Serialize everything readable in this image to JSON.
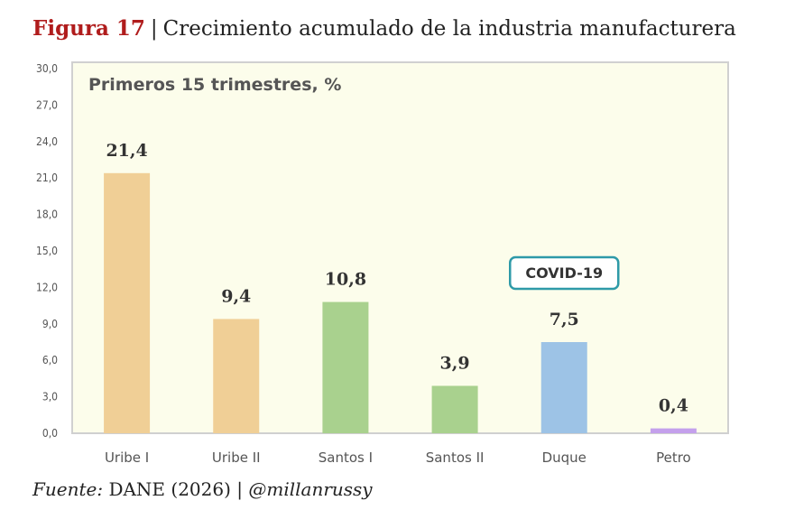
{
  "figure": {
    "number": "Figura 17",
    "separator": "|",
    "title": "Crecimiento acumulado de la industria manufacturera"
  },
  "source": {
    "label": "Fuente:",
    "text": "DANE (2026) |",
    "handle": "@millanrussy"
  },
  "chart_data": {
    "type": "bar",
    "title": "Primeros 15 trimestres, %",
    "categories": [
      "Uribe I",
      "Uribe II",
      "Santos I",
      "Santos II",
      "Duque",
      "Petro"
    ],
    "values": [
      21.4,
      9.4,
      10.8,
      3.9,
      7.5,
      0.4
    ],
    "data_labels": [
      "21,4",
      "9,4",
      "10,8",
      "3,9",
      "7,5",
      "0,4"
    ],
    "bar_colors": [
      "#f0cf96",
      "#f0cf96",
      "#a9d18e",
      "#a9d18e",
      "#9dc3e6",
      "#c4a0ec"
    ],
    "ylim": [
      0,
      30
    ],
    "yticks": [
      0,
      3,
      6,
      9,
      12,
      15,
      18,
      21,
      24,
      27,
      30
    ],
    "ytick_labels": [
      "0,0",
      "3,0",
      "6,0",
      "9,0",
      "12,0",
      "15,0",
      "18,0",
      "21,0",
      "24,0",
      "27,0",
      "30,0"
    ],
    "xlabel": "",
    "ylabel": "",
    "grid": false,
    "plot_background": "#fcfdeb",
    "annotation": {
      "text": "COVID-19",
      "category": "Duque",
      "border_color": "#2e9aa8"
    }
  }
}
